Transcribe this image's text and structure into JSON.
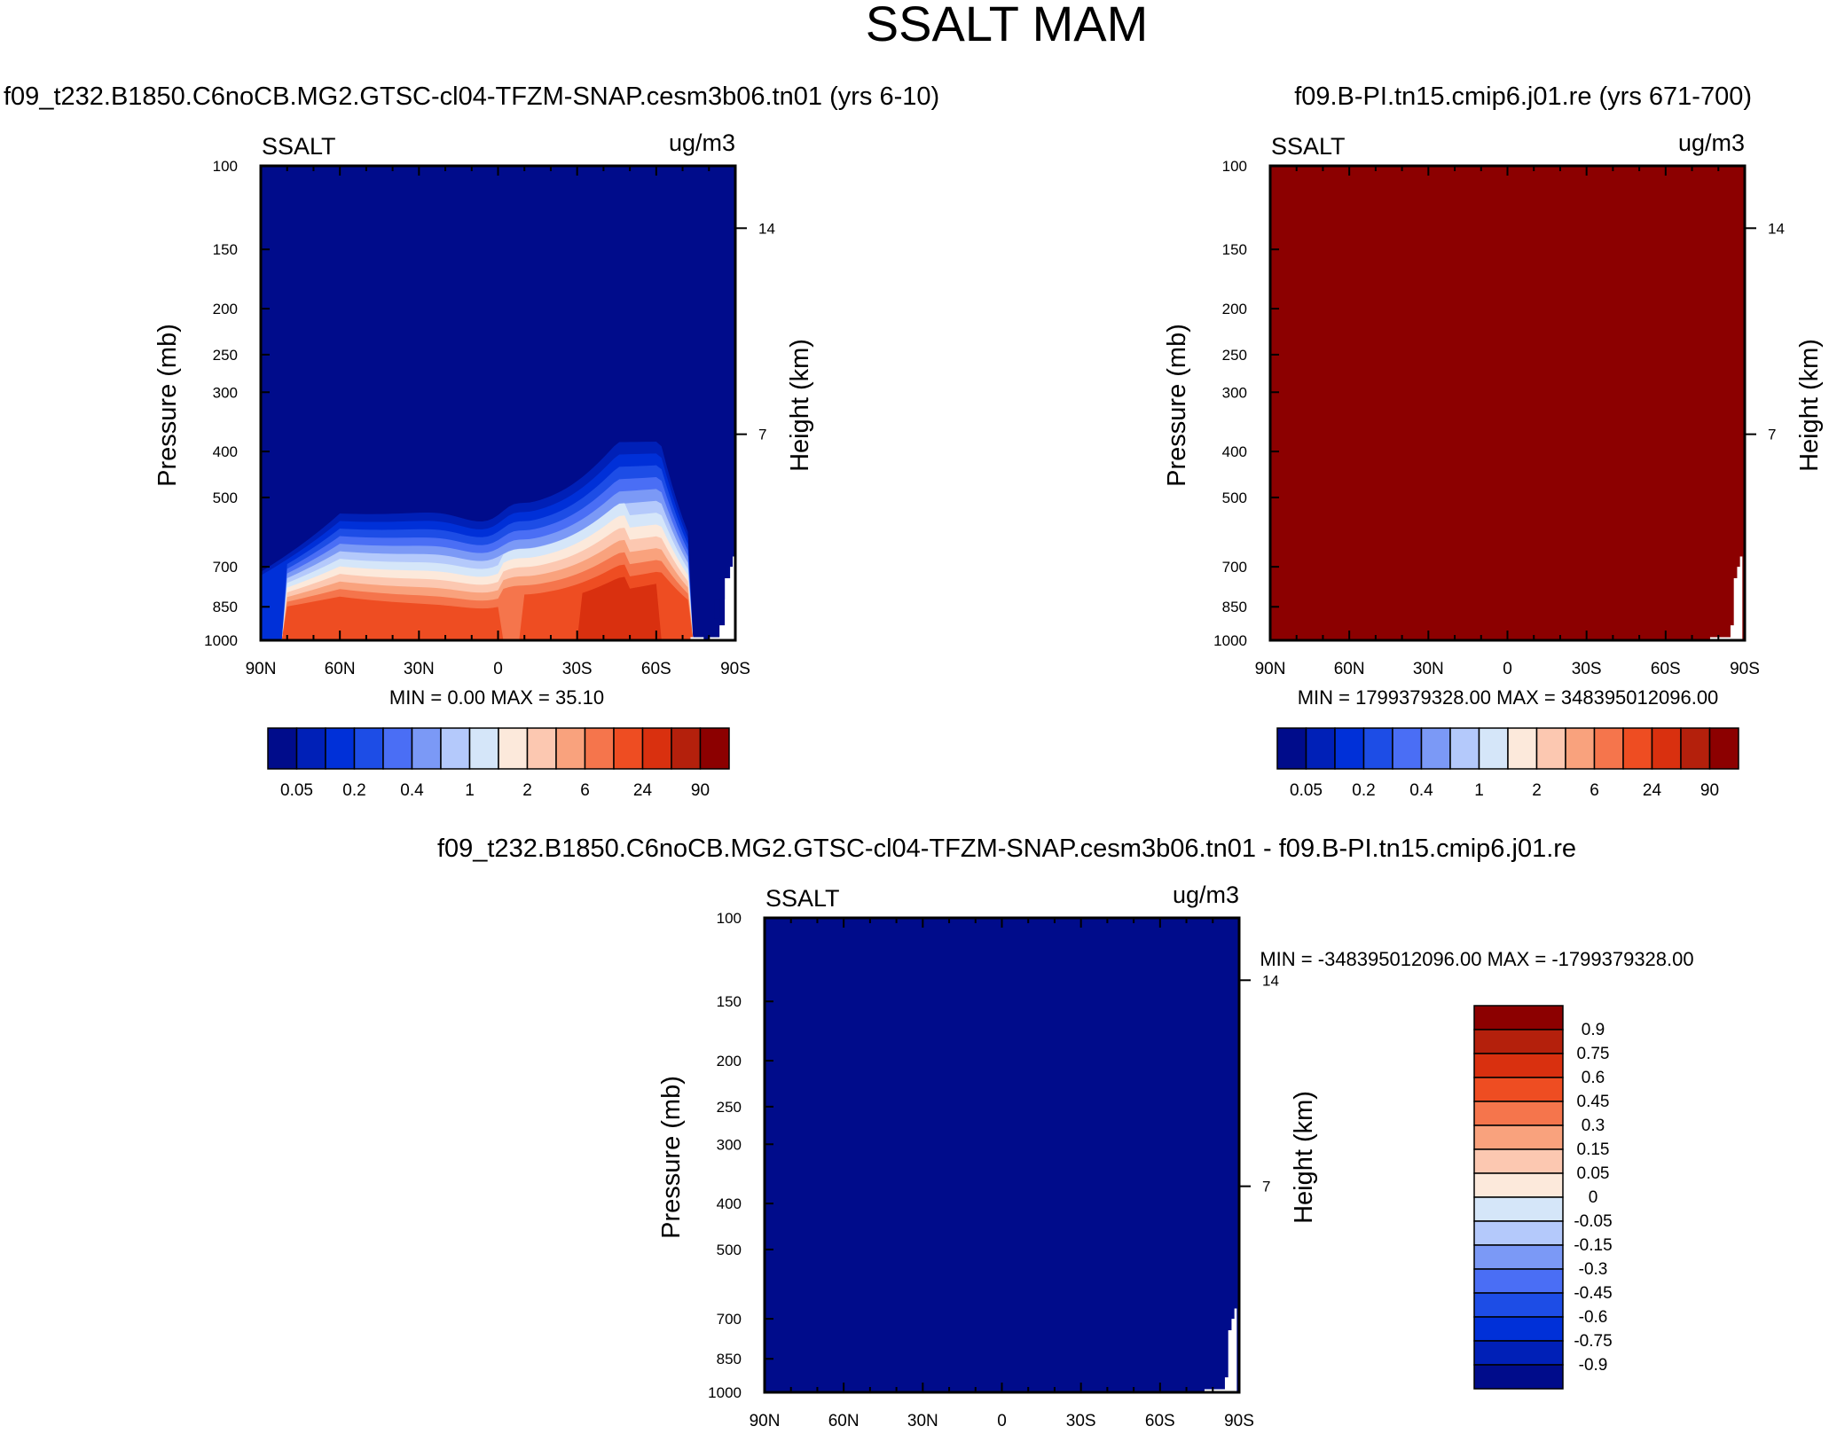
{
  "title": "SSALT MAM",
  "chart_data": [
    {
      "id": "p1",
      "type": "heatmap",
      "plot_kind": "zonal-mean pressure-latitude contour",
      "subtitle": "f09_t232.B1850.C6noCB.MG2.GTSC-cl04-TFZM-SNAP.cesm3b06.tn01 (yrs 6-10)",
      "variable_label": "SSALT",
      "units_label": "ug/m3",
      "ylabel": "Pressure (mb)",
      "y2label": "Height (km)",
      "x_ticks": [
        "90N",
        "60N",
        "30N",
        "0",
        "30S",
        "60S",
        "90S"
      ],
      "x_range": [
        90,
        -90
      ],
      "y_ticks": [
        100,
        150,
        200,
        250,
        300,
        400,
        500,
        700,
        850,
        1000
      ],
      "y_range": [
        100,
        1000
      ],
      "y2_ticks": [
        14,
        7
      ],
      "stats": "MIN =   0.00  MAX =  35.10",
      "field": "latitude-dependent profile",
      "contour_levels": [
        0.05,
        0.1,
        0.2,
        0.3,
        0.4,
        0.6,
        1,
        1.5,
        2,
        4,
        6,
        12,
        24,
        48,
        90
      ],
      "colorbar": {
        "orientation": "horizontal",
        "tick_labels": [
          "0.05",
          "0.2",
          "0.4",
          "1",
          "2",
          "6",
          "24",
          "90"
        ]
      }
    },
    {
      "id": "p2",
      "type": "heatmap",
      "plot_kind": "zonal-mean pressure-latitude contour",
      "subtitle": "f09.B-PI.tn15.cmip6.j01.re (yrs 671-700)",
      "variable_label": "SSALT",
      "units_label": "ug/m3",
      "ylabel": "Pressure (mb)",
      "y2label": "Height (km)",
      "x_ticks": [
        "90N",
        "60N",
        "30N",
        "0",
        "30S",
        "60S",
        "90S"
      ],
      "x_range": [
        90,
        -90
      ],
      "y_ticks": [
        100,
        150,
        200,
        250,
        300,
        400,
        500,
        700,
        850,
        1000
      ],
      "y_range": [
        100,
        1000
      ],
      "y2_ticks": [
        14,
        7
      ],
      "stats": "MIN = 1799379328.00  MAX = 348395012096.00",
      "field": "uniform, above top contour level",
      "colorbar": {
        "orientation": "horizontal",
        "tick_labels": [
          "0.05",
          "0.2",
          "0.4",
          "1",
          "2",
          "6",
          "24",
          "90"
        ]
      }
    },
    {
      "id": "p3",
      "type": "heatmap",
      "plot_kind": "zonal-mean pressure-latitude contour (difference)",
      "subtitle": "f09_t232.B1850.C6noCB.MG2.GTSC-cl04-TFZM-SNAP.cesm3b06.tn01 - f09.B-PI.tn15.cmip6.j01.re",
      "variable_label": "SSALT",
      "units_label": "ug/m3",
      "ylabel": "Pressure (mb)",
      "y2label": "Height (km)",
      "x_ticks": [
        "90N",
        "60N",
        "30N",
        "0",
        "30S",
        "60S",
        "90S"
      ],
      "x_range": [
        90,
        -90
      ],
      "y_ticks": [
        100,
        150,
        200,
        250,
        300,
        400,
        500,
        700,
        850,
        1000
      ],
      "y_range": [
        100,
        1000
      ],
      "y2_ticks": [
        14,
        7
      ],
      "stats": "MIN = -348395012096.00  MAX = -1799379328.00",
      "field": "uniform, below bottom contour level",
      "colorbar": {
        "orientation": "vertical",
        "tick_labels": [
          "0.9",
          "0.75",
          "0.6",
          "0.45",
          "0.3",
          "0.15",
          "0.05",
          "0",
          "-0.05",
          "-0.15",
          "-0.3",
          "-0.45",
          "-0.6",
          "-0.75",
          "-0.9"
        ]
      }
    }
  ],
  "colors": {
    "scale": [
      "#000c8b",
      "#0020b7",
      "#0030d8",
      "#1d4de6",
      "#4a6ef5",
      "#7b99f6",
      "#b4c9fb",
      "#d5e6f9",
      "#fce9db",
      "#fcc8b1",
      "#f9a27d",
      "#f5754c",
      "#ee4d22",
      "#d9300f",
      "#b4200c",
      "#8c0000"
    ],
    "uniform_high": "#8c0000",
    "uniform_low": "#000c8b"
  }
}
